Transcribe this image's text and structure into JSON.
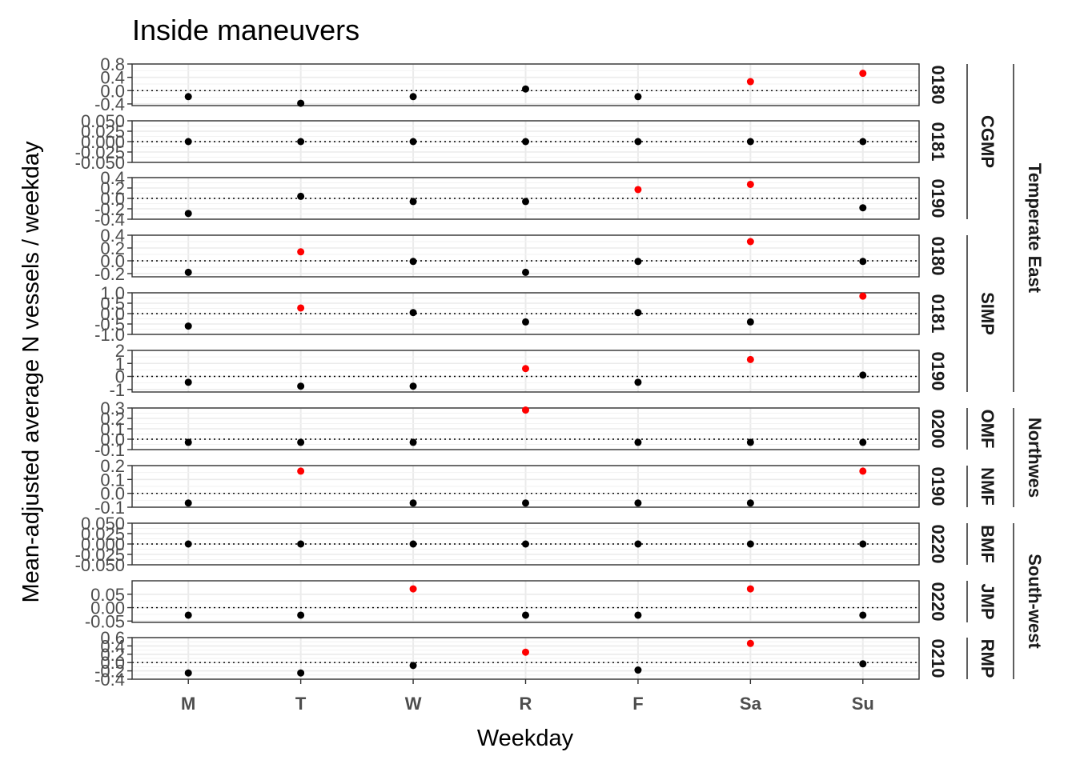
{
  "chart_data": {
    "type": "scatter",
    "title": "Inside maneuvers",
    "xlabel": "Weekday",
    "ylabel": "Mean-adjusted average N vessels / weekday",
    "categories": [
      "M",
      "T",
      "W",
      "R",
      "F",
      "Sa",
      "Su"
    ],
    "colors": {
      "significant": "#ff0000",
      "normal": "#000000",
      "grid": "#ebebeb",
      "panel_border": "#333333"
    },
    "reference_line": 0,
    "groups": [
      {
        "name": "Temperate East",
        "rows": [
          0,
          1,
          2,
          3,
          4,
          5
        ]
      },
      {
        "name": "Northwes",
        "rows": [
          6,
          7
        ]
      },
      {
        "name": "South-west",
        "rows": [
          8,
          9,
          10
        ]
      }
    ],
    "panels": [
      {
        "strip": "0180",
        "park": "CGMP",
        "park_rows": 3,
        "ylim": [
          -0.45,
          0.8
        ],
        "ticks": [
          0.8,
          0.4,
          0.0,
          -0.4
        ],
        "tick_labels": [
          "0.8",
          "0.4",
          "0.0",
          "-0.4"
        ],
        "values": [
          -0.18,
          -0.38,
          -0.18,
          0.05,
          -0.18,
          0.27,
          0.52
        ],
        "significant": [
          false,
          false,
          false,
          false,
          false,
          true,
          true
        ]
      },
      {
        "strip": "0181",
        "park": "",
        "ylim": [
          -0.05,
          0.05
        ],
        "ticks": [
          0.05,
          0.025,
          0.0,
          -0.025,
          -0.05
        ],
        "tick_labels": [
          "0.050",
          "0.025",
          "0.000",
          "-0.025",
          "-0.050"
        ],
        "values": [
          0,
          0,
          0,
          0,
          0,
          0,
          0
        ],
        "significant": [
          false,
          false,
          false,
          false,
          false,
          false,
          false
        ]
      },
      {
        "strip": "0190",
        "park": "",
        "ylim": [
          -0.4,
          0.4
        ],
        "ticks": [
          0.4,
          0.2,
          0.0,
          -0.2,
          -0.4
        ],
        "tick_labels": [
          "0.4",
          "0.2",
          "0.0",
          "-0.2",
          "-0.4"
        ],
        "values": [
          -0.29,
          0.04,
          -0.06,
          -0.06,
          0.17,
          0.27,
          -0.18
        ],
        "significant": [
          false,
          false,
          false,
          false,
          true,
          true,
          false
        ]
      },
      {
        "strip": "0180",
        "park": "SIMP",
        "park_rows": 3,
        "ylim": [
          -0.25,
          0.4
        ],
        "ticks": [
          0.4,
          0.2,
          0.0,
          -0.2
        ],
        "tick_labels": [
          "0.4",
          "0.2",
          "0.0",
          "-0.2"
        ],
        "values": [
          -0.18,
          0.14,
          -0.01,
          -0.18,
          -0.01,
          0.3,
          -0.01
        ],
        "significant": [
          false,
          true,
          false,
          false,
          false,
          true,
          false
        ]
      },
      {
        "strip": "0181",
        "park": "",
        "ylim": [
          -1.0,
          1.0
        ],
        "ticks": [
          1.0,
          0.5,
          0.0,
          -0.5,
          -1.0
        ],
        "tick_labels": [
          "1.0",
          "0.5",
          "0.0",
          "-0.5",
          "-1.0"
        ],
        "values": [
          -0.6,
          0.27,
          0.05,
          -0.4,
          0.05,
          -0.4,
          0.84
        ],
        "significant": [
          false,
          true,
          false,
          false,
          false,
          false,
          true
        ]
      },
      {
        "strip": "0190",
        "park": "",
        "ylim": [
          -1.2,
          2.0
        ],
        "ticks": [
          2,
          1,
          0,
          -1
        ],
        "tick_labels": [
          "2",
          "1",
          "0",
          "-1"
        ],
        "values": [
          -0.45,
          -0.75,
          -0.75,
          0.6,
          -0.45,
          1.3,
          0.1
        ],
        "significant": [
          false,
          false,
          false,
          true,
          false,
          true,
          false
        ]
      },
      {
        "strip": "0200",
        "park": "OMF",
        "park_rows": 1,
        "ylim": [
          -0.1,
          0.3
        ],
        "ticks": [
          0.3,
          0.2,
          0.1,
          0.0,
          -0.1
        ],
        "tick_labels": [
          "0.3",
          "0.2",
          "0.1",
          "0.0",
          "-0.1"
        ],
        "values": [
          -0.03,
          -0.03,
          -0.03,
          0.28,
          -0.03,
          -0.03,
          -0.03
        ],
        "significant": [
          false,
          false,
          false,
          true,
          false,
          false,
          false
        ]
      },
      {
        "strip": "0190",
        "park": "NMF",
        "park_rows": 1,
        "ylim": [
          -0.1,
          0.2
        ],
        "ticks": [
          0.2,
          0.1,
          0.0,
          -0.1
        ],
        "tick_labels": [
          "0.2",
          "0.1",
          "0.0",
          "-0.1"
        ],
        "values": [
          -0.07,
          0.16,
          -0.07,
          -0.07,
          -0.07,
          -0.07,
          0.16
        ],
        "significant": [
          false,
          true,
          false,
          false,
          false,
          false,
          true
        ]
      },
      {
        "strip": "0220",
        "park": "BMF",
        "park_rows": 1,
        "ylim": [
          -0.05,
          0.05
        ],
        "ticks": [
          0.05,
          0.025,
          0.0,
          -0.025,
          -0.05
        ],
        "tick_labels": [
          "0.050",
          "0.025",
          "0.000",
          "-0.025",
          "-0.050"
        ],
        "values": [
          0,
          0,
          0,
          0,
          0,
          0,
          0
        ],
        "significant": [
          false,
          false,
          false,
          false,
          false,
          false,
          false
        ]
      },
      {
        "strip": "0220",
        "park": "JMP",
        "park_rows": 1,
        "ylim": [
          -0.055,
          0.1
        ],
        "ticks": [
          0.05,
          0.0,
          -0.05
        ],
        "tick_labels": [
          "0.05",
          "0.00",
          "-0.05"
        ],
        "values": [
          -0.028,
          -0.028,
          0.07,
          -0.028,
          -0.028,
          0.07,
          -0.028
        ],
        "significant": [
          false,
          false,
          true,
          false,
          false,
          true,
          false
        ]
      },
      {
        "strip": "0210",
        "park": "RMP",
        "park_rows": 1,
        "ylim": [
          -0.4,
          0.6
        ],
        "ticks": [
          0.6,
          0.4,
          0.2,
          0.0,
          -0.2,
          -0.4
        ],
        "tick_labels": [
          "0.6",
          "0.4",
          "0.2",
          "0.0",
          "-0.2",
          "-0.4"
        ],
        "values": [
          -0.25,
          -0.25,
          -0.07,
          0.25,
          -0.18,
          0.46,
          -0.03
        ],
        "significant": [
          false,
          false,
          false,
          true,
          false,
          true,
          false
        ]
      }
    ]
  }
}
